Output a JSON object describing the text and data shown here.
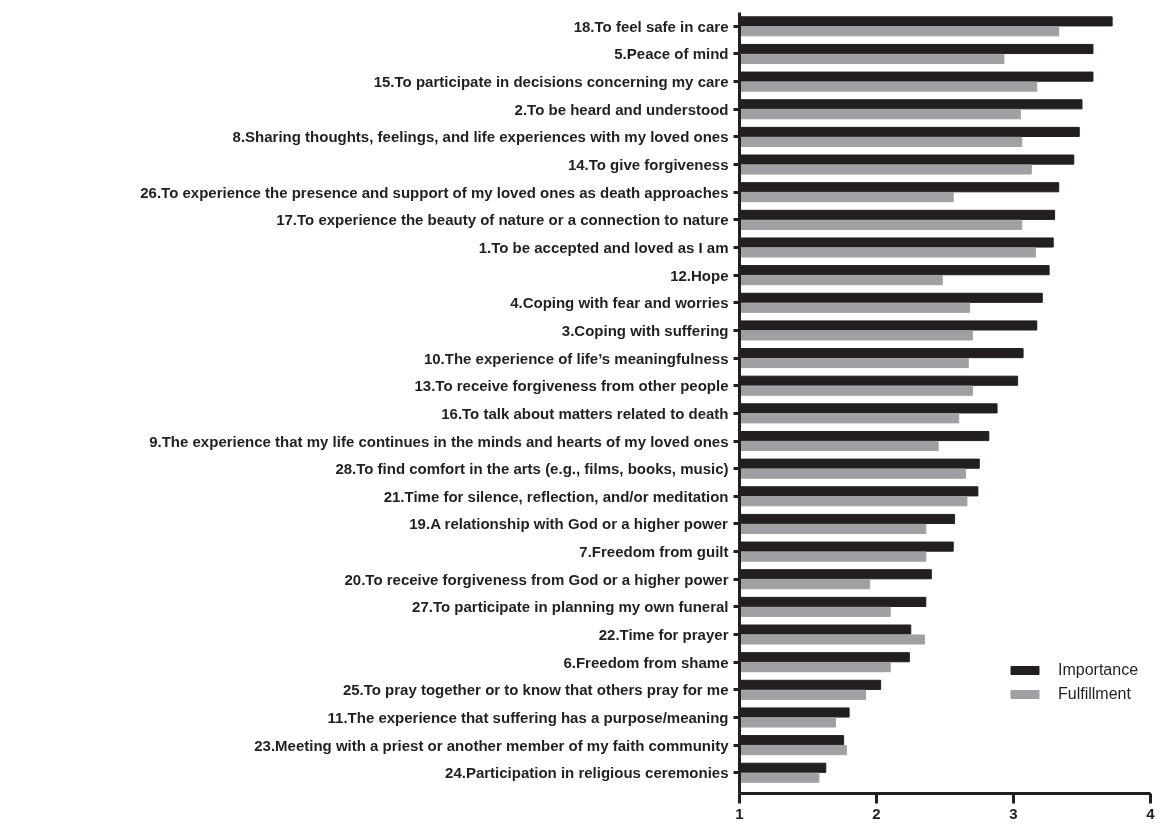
{
  "chart_data": {
    "type": "bar",
    "orientation": "horizontal",
    "categories": [
      "18.To feel safe in care",
      "5.Peace of mind",
      "15.To participate in decisions concerning my care",
      "2.To be heard and understood",
      "8.Sharing thoughts, feelings, and life experiences with my loved ones",
      "14.To give forgiveness",
      "26.To experience the presence and support of my loved ones as death approaches",
      "17.To experience the beauty of nature or a connection to nature",
      "1.To be accepted and loved as I am",
      "12.Hope",
      "4.Coping with fear and worries",
      "3.Coping with suffering",
      "10.The experience of life’s meaningfulness",
      "13.To receive forgiveness from other people",
      "16.To talk about matters related to death",
      "9.The experience that my life continues in the minds and hearts of my loved ones",
      "28.To find comfort in the arts (e.g., films, books, music)",
      "21.Time for silence, reflection, and/or meditation",
      "19.A relationship with God or a higher power",
      "7.Freedom from guilt",
      "20.To receive forgiveness from God or a higher power",
      "27.To participate in planning my own funeral",
      "22.Time for prayer",
      "6.Freedom from shame",
      "25.To pray together or to know that others pray for me",
      "11.The experience that suffering has a purpose/meaning",
      "23.Meeting with a priest or another member of my faith community",
      "24.Participation in religious ceremonies"
    ],
    "series": [
      {
        "name": "Importance",
        "color": "#231f20",
        "values": [
          3.72,
          3.58,
          3.58,
          3.5,
          3.48,
          3.44,
          3.33,
          3.3,
          3.29,
          3.26,
          3.21,
          3.17,
          3.07,
          3.03,
          2.88,
          2.82,
          2.75,
          2.74,
          2.57,
          2.56,
          2.4,
          2.36,
          2.25,
          2.24,
          2.03,
          1.8,
          1.76,
          1.63
        ]
      },
      {
        "name": "Fulfillment",
        "color": "#a0a0a4",
        "values": [
          3.33,
          2.93,
          3.17,
          3.05,
          3.06,
          3.13,
          2.56,
          3.06,
          3.16,
          2.48,
          2.68,
          2.7,
          2.67,
          2.7,
          2.6,
          2.45,
          2.65,
          2.66,
          2.36,
          2.36,
          1.95,
          2.1,
          2.35,
          2.1,
          1.92,
          1.7,
          1.78,
          1.58
        ]
      }
    ],
    "xlim": [
      1,
      4
    ],
    "xticks": [
      1,
      2,
      3,
      4
    ],
    "grid": false,
    "legend": "bottom right"
  }
}
